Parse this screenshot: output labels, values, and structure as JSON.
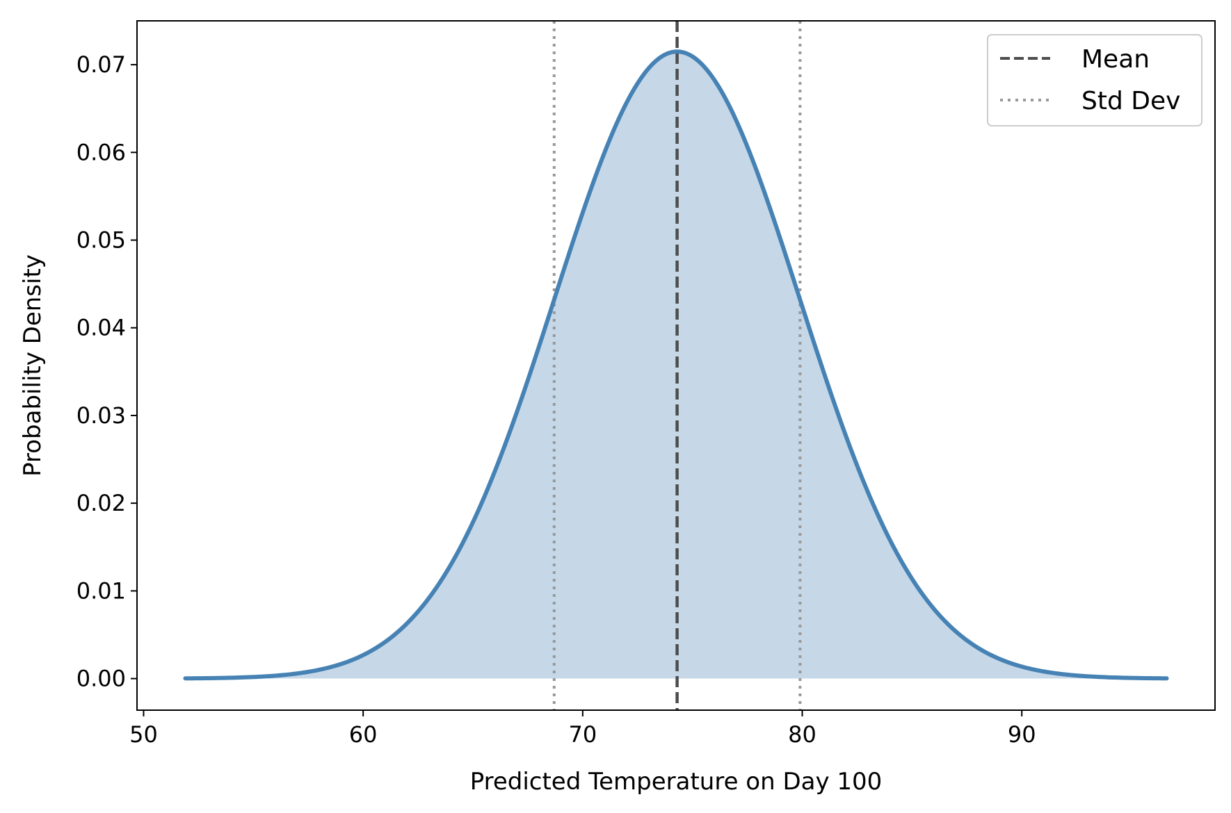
{
  "chart_data": {
    "type": "area",
    "title": "",
    "xlabel": "Predicted Temperature on Day 100",
    "ylabel": "Probability Density",
    "xlim": [
      49.7,
      98.8
    ],
    "ylim": [
      -0.0036,
      0.075
    ],
    "x_ticks": [
      50,
      60,
      70,
      80,
      90
    ],
    "y_ticks": [
      0.0,
      0.01,
      0.02,
      0.03,
      0.04,
      0.05,
      0.06,
      0.07
    ],
    "x_tick_labels": [
      "50",
      "60",
      "70",
      "80",
      "90"
    ],
    "y_tick_labels": [
      "0.00",
      "0.01",
      "0.02",
      "0.03",
      "0.04",
      "0.05",
      "0.06",
      "0.07"
    ],
    "grid": false,
    "distribution": {
      "name": "normal",
      "mean": 74.3,
      "std": 5.58,
      "x_range": [
        51.9,
        96.6
      ]
    },
    "series": [
      {
        "kind": "density-curve",
        "color": "#4682b4",
        "fill_color": "#c6d8e8"
      }
    ],
    "reference_lines": [
      {
        "name": "Mean",
        "x": 74.3,
        "style": "dashed",
        "color": "#4d4d4d"
      },
      {
        "name": "Std Dev",
        "x": 68.7,
        "style": "dotted",
        "color": "#999999"
      },
      {
        "name": "Std Dev",
        "x": 79.9,
        "style": "dotted",
        "color": "#999999"
      }
    ],
    "legend": {
      "placement": "top-right",
      "entries": [
        {
          "label": "Mean",
          "style": "dashed",
          "color": "#4d4d4d"
        },
        {
          "label": "Std Dev",
          "style": "dotted",
          "color": "#999999"
        }
      ]
    }
  }
}
